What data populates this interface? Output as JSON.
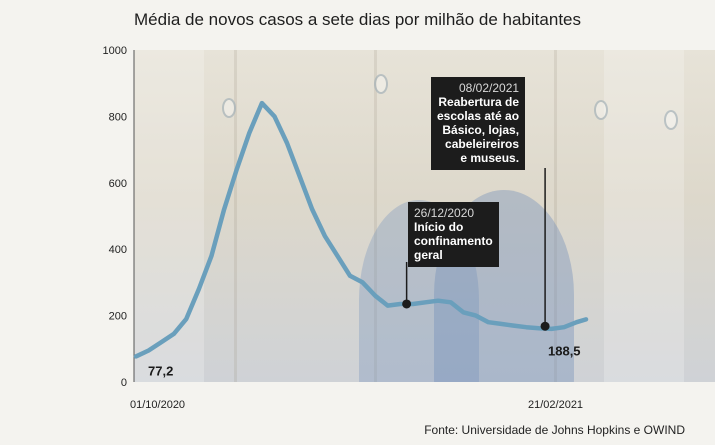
{
  "chart_data": {
    "type": "line",
    "title": "Média de novos casos a sete dias por milhão de habitantes",
    "ylim": [
      0,
      1000
    ],
    "yticks": [
      0,
      200,
      400,
      600,
      800,
      1000
    ],
    "x_start_label": "01/10/2020",
    "x_end_label": "21/02/2021",
    "x_days": [
      0,
      4,
      8,
      12,
      16,
      20,
      24,
      28,
      32,
      36,
      40,
      44,
      48,
      52,
      56,
      60,
      64,
      68,
      72,
      76,
      80,
      84,
      88,
      92,
      96,
      100,
      104,
      108,
      112,
      116,
      120,
      124,
      128,
      132,
      136,
      140,
      143
    ],
    "series": [
      {
        "name": "Média de novos casos a sete dias por milhão de habitantes",
        "values": [
          77.2,
          95,
          120,
          145,
          190,
          280,
          380,
          520,
          640,
          750,
          840,
          800,
          720,
          620,
          520,
          440,
          380,
          320,
          300,
          260,
          230,
          235,
          235,
          240,
          245,
          240,
          210,
          200,
          180,
          175,
          170,
          165,
          162,
          160,
          165,
          180,
          188.5
        ]
      }
    ],
    "start_value_label": "77,2",
    "end_value_label": "188,5",
    "annotations": [
      {
        "day": 86,
        "value": 235,
        "date": "26/12/2020",
        "text": "Início do\nconfinamento\ngeral"
      },
      {
        "day": 130,
        "value": 168,
        "date": "08/02/2021",
        "text": "Reabertura de\nescolas até ao\nBásico, lojas,\ncabeleireiros\ne museus."
      }
    ],
    "colors": {
      "line": "#6a9fbc",
      "annotation_bg": "#1c1c1c"
    }
  },
  "source": "Fonte: Universidade de Johns Hopkins e OWIND"
}
